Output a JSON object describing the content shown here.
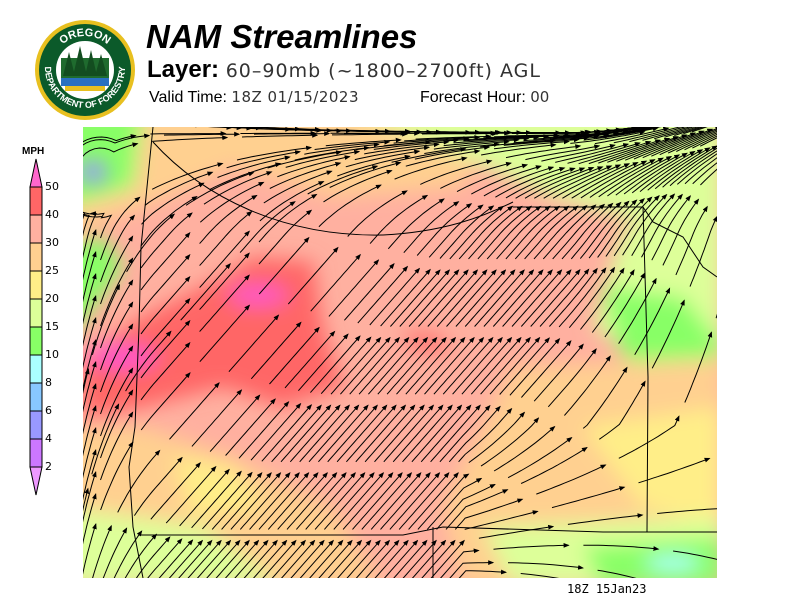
{
  "header": {
    "title": "NAM Streamlines",
    "layer_label": "Layer:",
    "layer_value": "60–90mb (~1800–2700ft) AGL",
    "valid_label": "Valid Time:",
    "valid_value": "18Z 01/15/2023",
    "forecast_label": "Forecast Hour:",
    "forecast_value": "00"
  },
  "logo": {
    "top_text": "OREGON",
    "bottom_text": "DEPARTMENT OF FORESTRY"
  },
  "legend": {
    "unit": "MPH",
    "labels": [
      "50",
      "40",
      "30",
      "25",
      "20",
      "15",
      "10",
      "8",
      "6",
      "4",
      "2"
    ],
    "colors": [
      "#ff66cc",
      "#ff6666",
      "#ffb0a0",
      "#ffd090",
      "#ffee88",
      "#ddff99",
      "#88ff66",
      "#aaffff",
      "#88c8ff",
      "#9999ff",
      "#cc77ff",
      "#ee99ff"
    ]
  },
  "map": {
    "stamp": "18Z 15Jan23",
    "field": "streamlines over wind speed (MPH)"
  }
}
